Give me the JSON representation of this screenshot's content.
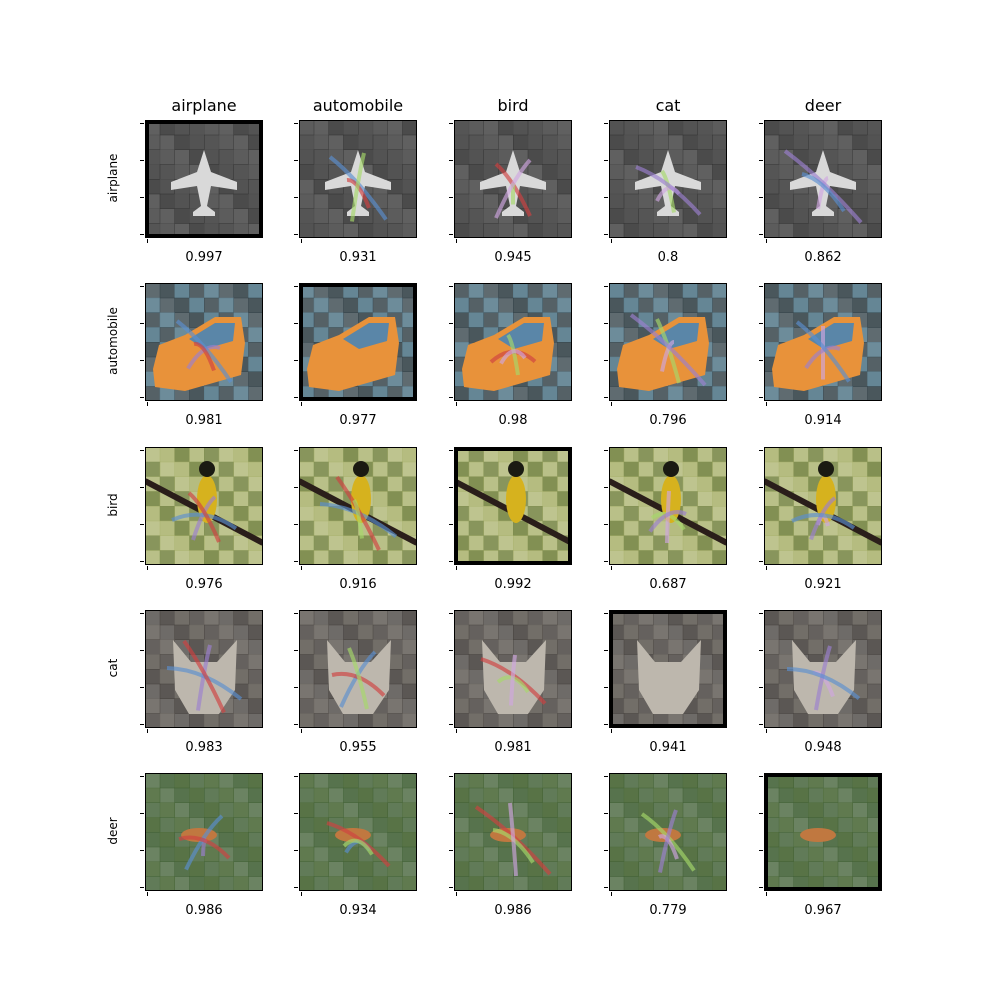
{
  "columns": [
    "airplane",
    "automobile",
    "bird",
    "cat",
    "deer"
  ],
  "rows": [
    "airplane",
    "automobile",
    "bird",
    "cat",
    "deer"
  ],
  "scores": [
    [
      "0.997",
      "0.931",
      "0.945",
      "0.8",
      "0.862"
    ],
    [
      "0.981",
      "0.977",
      "0.98",
      "0.796",
      "0.914"
    ],
    [
      "0.976",
      "0.916",
      "0.992",
      "0.687",
      "0.921"
    ],
    [
      "0.983",
      "0.955",
      "0.981",
      "0.941",
      "0.948"
    ],
    [
      "0.986",
      "0.934",
      "0.986",
      "0.779",
      "0.967"
    ]
  ],
  "palettes": {
    "airplane": {
      "bg": "#4a4a4a",
      "bg2": "#2b2b2b",
      "fg": "#d9d9d9"
    },
    "automobile": {
      "bg": "#5d7f8f",
      "bg2": "#2a3a40",
      "fg": "#e8923a"
    },
    "bird": {
      "bg": "#7b8a4a",
      "bg2": "#a8b06a",
      "fg": "#d6b21e"
    },
    "cat": {
      "bg": "#6a6660",
      "bg2": "#3e3a36",
      "fg": "#bdb7ad"
    },
    "deer": {
      "bg": "#4f6b3c",
      "bg2": "#3a5a2e",
      "fg": "#c07840"
    }
  }
}
